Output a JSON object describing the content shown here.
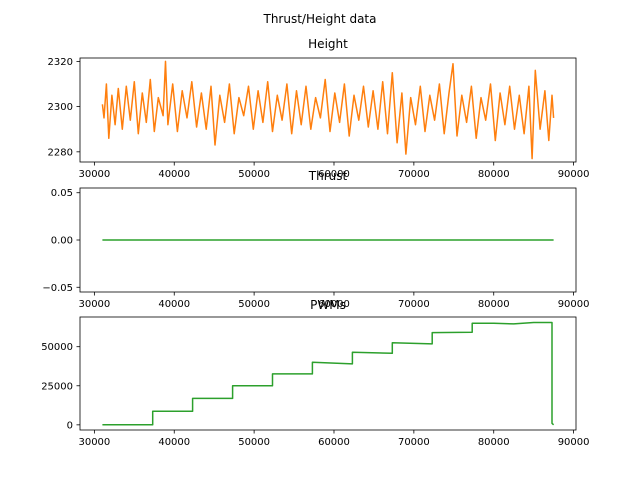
{
  "figure": {
    "title": "Thrust/Height data"
  },
  "chart_data": [
    {
      "type": "line",
      "title": "Height",
      "xlim": [
        28200,
        90300
      ],
      "ylim": [
        2275.5,
        2321.5
      ],
      "xticks": [
        30000,
        40000,
        50000,
        60000,
        70000,
        80000,
        90000
      ],
      "yticks": [
        2280,
        2300,
        2320
      ],
      "series": [
        {
          "color": "#ff7f0e",
          "points": [
            [
              31000,
              2301
            ],
            [
              31200,
              2295
            ],
            [
              31500,
              2310
            ],
            [
              31800,
              2286
            ],
            [
              32200,
              2305
            ],
            [
              32600,
              2292
            ],
            [
              33000,
              2308
            ],
            [
              33500,
              2290
            ],
            [
              34000,
              2309
            ],
            [
              34500,
              2294
            ],
            [
              35000,
              2311
            ],
            [
              35500,
              2288
            ],
            [
              36000,
              2306
            ],
            [
              36500,
              2293
            ],
            [
              37000,
              2312
            ],
            [
              37500,
              2289
            ],
            [
              38000,
              2304
            ],
            [
              38600,
              2296
            ],
            [
              38900,
              2320
            ],
            [
              39200,
              2292
            ],
            [
              39800,
              2310
            ],
            [
              40400,
              2289
            ],
            [
              41000,
              2307
            ],
            [
              41600,
              2295
            ],
            [
              42200,
              2311
            ],
            [
              42800,
              2291
            ],
            [
              43400,
              2306
            ],
            [
              44000,
              2290
            ],
            [
              44600,
              2309
            ],
            [
              45100,
              2283
            ],
            [
              45700,
              2305
            ],
            [
              46300,
              2293
            ],
            [
              46900,
              2310
            ],
            [
              47500,
              2288
            ],
            [
              48100,
              2304
            ],
            [
              48700,
              2296
            ],
            [
              49300,
              2309
            ],
            [
              49900,
              2290
            ],
            [
              50500,
              2307
            ],
            [
              51100,
              2293
            ],
            [
              51700,
              2311
            ],
            [
              52300,
              2289
            ],
            [
              52900,
              2305
            ],
            [
              53500,
              2294
            ],
            [
              54100,
              2310
            ],
            [
              54700,
              2288
            ],
            [
              55300,
              2307
            ],
            [
              55900,
              2292
            ],
            [
              56500,
              2309
            ],
            [
              57100,
              2290
            ],
            [
              57700,
              2304
            ],
            [
              58300,
              2295
            ],
            [
              58900,
              2312
            ],
            [
              59500,
              2289
            ],
            [
              60100,
              2306
            ],
            [
              60700,
              2293
            ],
            [
              61300,
              2310
            ],
            [
              61900,
              2287
            ],
            [
              62500,
              2305
            ],
            [
              63100,
              2294
            ],
            [
              63700,
              2309
            ],
            [
              64300,
              2291
            ],
            [
              64900,
              2307
            ],
            [
              65500,
              2290
            ],
            [
              66100,
              2311
            ],
            [
              66700,
              2288
            ],
            [
              67300,
              2315
            ],
            [
              67900,
              2284
            ],
            [
              68500,
              2306
            ],
            [
              69000,
              2279
            ],
            [
              69600,
              2304
            ],
            [
              70200,
              2292
            ],
            [
              70800,
              2309
            ],
            [
              71400,
              2289
            ],
            [
              72000,
              2305
            ],
            [
              72600,
              2294
            ],
            [
              73200,
              2310
            ],
            [
              73800,
              2288
            ],
            [
              74400,
              2306
            ],
            [
              74900,
              2319
            ],
            [
              75400,
              2287
            ],
            [
              76000,
              2305
            ],
            [
              76600,
              2293
            ],
            [
              77200,
              2309
            ],
            [
              77800,
              2286
            ],
            [
              78400,
              2304
            ],
            [
              79000,
              2294
            ],
            [
              79600,
              2310
            ],
            [
              80200,
              2285
            ],
            [
              80800,
              2306
            ],
            [
              81400,
              2292
            ],
            [
              82000,
              2309
            ],
            [
              82600,
              2290
            ],
            [
              83200,
              2305
            ],
            [
              83800,
              2288
            ],
            [
              84400,
              2309
            ],
            [
              84800,
              2277
            ],
            [
              85200,
              2316
            ],
            [
              85800,
              2290
            ],
            [
              86400,
              2307
            ],
            [
              86900,
              2285
            ],
            [
              87300,
              2305
            ],
            [
              87500,
              2295
            ]
          ]
        }
      ]
    },
    {
      "type": "line",
      "title": "Thrust",
      "xlim": [
        28200,
        90300
      ],
      "ylim": [
        -0.055,
        0.055
      ],
      "xticks": [
        30000,
        40000,
        50000,
        60000,
        70000,
        80000,
        90000
      ],
      "yticks": [
        -0.05,
        0.0,
        0.05
      ],
      "ytick_labels": [
        "−0.05",
        "0.00",
        "0.05"
      ],
      "series": [
        {
          "color": "#2ca02c",
          "points": [
            [
              31000,
              0
            ],
            [
              87500,
              0
            ]
          ]
        }
      ]
    },
    {
      "type": "line",
      "title": "PWMs",
      "xlim": [
        28200,
        90300
      ],
      "ylim": [
        -3300,
        69000
      ],
      "xticks": [
        30000,
        40000,
        50000,
        60000,
        70000,
        80000,
        90000
      ],
      "yticks": [
        0,
        25000,
        50000
      ],
      "series": [
        {
          "color": "#2ca02c",
          "points": [
            [
              31000,
              0
            ],
            [
              37300,
              0
            ],
            [
              37300,
              8700
            ],
            [
              42300,
              8700
            ],
            [
              42300,
              16900
            ],
            [
              47300,
              16900
            ],
            [
              47300,
              25000
            ],
            [
              52300,
              25000
            ],
            [
              52300,
              32600
            ],
            [
              57300,
              32600
            ],
            [
              57300,
              40000
            ],
            [
              62300,
              39000
            ],
            [
              62300,
              46500
            ],
            [
              67300,
              45800
            ],
            [
              67300,
              52500
            ],
            [
              72300,
              51800
            ],
            [
              72300,
              59000
            ],
            [
              77300,
              59300
            ],
            [
              77300,
              65000
            ],
            [
              80000,
              65000
            ],
            [
              82500,
              64600
            ],
            [
              85000,
              65500
            ],
            [
              87300,
              65500
            ],
            [
              87300,
              1000
            ],
            [
              87500,
              0
            ]
          ]
        }
      ]
    }
  ]
}
